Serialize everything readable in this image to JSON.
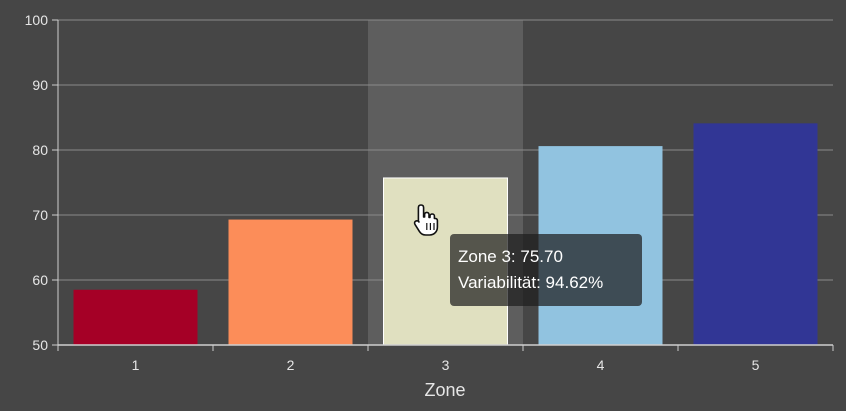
{
  "chart_data": {
    "type": "bar",
    "categories": [
      "1",
      "2",
      "3",
      "4",
      "5"
    ],
    "values": [
      58.5,
      69.3,
      75.7,
      80.6,
      84.1
    ],
    "colors": [
      "#a50026",
      "#fc8d59",
      "#e0e0c0",
      "#91c3e0",
      "#313695"
    ],
    "title": "",
    "xlabel": "Zone",
    "ylabel": "",
    "ylim": [
      50,
      100
    ],
    "y_ticks": [
      50,
      60,
      70,
      80,
      90,
      100
    ],
    "grid": true,
    "highlighted_category": "3",
    "tooltip": {
      "line1": "Zone 3: 75.70",
      "line2": "Variabilität: 94.62%"
    }
  },
  "colors": {
    "background": "#464646",
    "grid": "#8a8a8a",
    "axis": "#cfcfcf",
    "highlight_band": "#5e5e5e",
    "text": "#e6e6e6"
  },
  "cursor_icon": "hand-pointer-icon"
}
